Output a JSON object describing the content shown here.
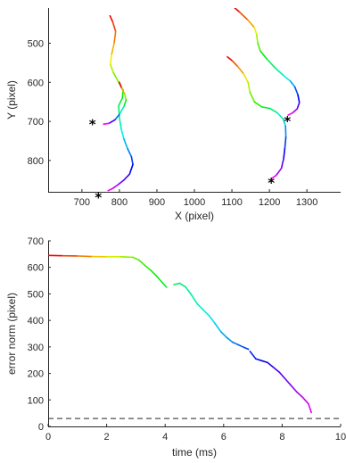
{
  "chart_data": [
    {
      "type": "line",
      "title": "",
      "xlabel": "X (pixel)",
      "ylabel": "Y (pixel)",
      "xlim": [
        610,
        1390
      ],
      "ylim": [
        880,
        410
      ],
      "y_reversed": true,
      "xticks": [
        "700",
        "800",
        "900",
        "1000",
        "1100",
        "1200",
        "1300"
      ],
      "xtick_values": [
        700,
        800,
        900,
        1000,
        1100,
        1200,
        1300
      ],
      "yticks": [
        "500",
        "600",
        "700",
        "800"
      ],
      "ytick_values": [
        500,
        600,
        700,
        800
      ],
      "colormap": "hsv (color encodes time along trajectory)",
      "series": [
        {
          "points": [
            [
              775,
              430
            ],
            [
              782,
              445
            ],
            [
              790,
              470
            ],
            [
              786,
              500
            ],
            [
              779,
              530
            ],
            [
              776,
              555
            ],
            [
              784,
              575
            ],
            [
              798,
              600
            ],
            [
              810,
              620
            ],
            [
              808,
              640
            ],
            [
              798,
              660
            ],
            [
              800,
              690
            ],
            [
              805,
              720
            ],
            [
              812,
              745
            ],
            [
              822,
              770
            ],
            [
              832,
              790
            ],
            [
              836,
              810
            ],
            [
              827,
              835
            ],
            [
              812,
              850
            ],
            [
              796,
              862
            ],
            [
              781,
              872
            ],
            [
              770,
              877
            ]
          ]
        },
        {
          "points": [
            [
              800,
              600
            ],
            [
              806,
              615
            ],
            [
              814,
              630
            ],
            [
              818,
              645
            ],
            [
              812,
              662
            ],
            [
              800,
              682
            ],
            [
              788,
              696
            ],
            [
              772,
              705
            ],
            [
              758,
              707
            ]
          ]
        },
        {
          "points": [
            [
              1102,
              405
            ],
            [
              1120,
              420
            ],
            [
              1142,
              440
            ],
            [
              1160,
              460
            ],
            [
              1166,
              478
            ],
            [
              1169,
              500
            ],
            [
              1176,
              520
            ],
            [
              1193,
              540
            ],
            [
              1214,
              562
            ],
            [
              1237,
              582
            ],
            [
              1256,
              597
            ],
            [
              1268,
              612
            ],
            [
              1276,
              632
            ],
            [
              1280,
              652
            ],
            [
              1274,
              668
            ],
            [
              1262,
              678
            ],
            [
              1250,
              684
            ]
          ]
        },
        {
          "points": [
            [
              1088,
              535
            ],
            [
              1101,
              545
            ],
            [
              1116,
              560
            ],
            [
              1131,
              578
            ],
            [
              1143,
              600
            ],
            [
              1148,
              625
            ],
            [
              1160,
              650
            ],
            [
              1180,
              663
            ],
            [
              1202,
              667
            ],
            [
              1221,
              678
            ],
            [
              1237,
              694
            ],
            [
              1243,
              712
            ],
            [
              1244,
              740
            ],
            [
              1241,
              770
            ],
            [
              1238,
              795
            ],
            [
              1232,
              820
            ],
            [
              1218,
              838
            ],
            [
              1206,
              846
            ]
          ]
        }
      ],
      "markers": [
        {
          "symbol": "*",
          "x": 728,
          "y": 705
        },
        {
          "symbol": "*",
          "x": 744,
          "y": 893
        },
        {
          "symbol": "*",
          "x": 1205,
          "y": 855
        },
        {
          "symbol": "*",
          "x": 1248,
          "y": 698
        }
      ]
    },
    {
      "type": "line",
      "title": "",
      "xlabel": "time (ms)",
      "ylabel": "error norm (pixel)",
      "xlim": [
        0,
        10
      ],
      "ylim": [
        0,
        700
      ],
      "xticks": [
        "0",
        "2",
        "4",
        "6",
        "8",
        "10"
      ],
      "xtick_values": [
        0,
        2,
        4,
        6,
        8,
        10
      ],
      "yticks": [
        "0",
        "100",
        "200",
        "300",
        "400",
        "500",
        "600",
        "700"
      ],
      "ytick_values": [
        0,
        100,
        200,
        300,
        400,
        500,
        600,
        700
      ],
      "colormap": "hsv (color encodes time)",
      "series": [
        {
          "x": [
            0,
            0.5,
            1.0,
            1.5,
            2.0,
            2.5,
            2.9,
            3.1,
            3.3,
            3.5,
            3.7,
            3.9,
            4.05
          ],
          "y": [
            645,
            644,
            643,
            641,
            640,
            640,
            638,
            628,
            608,
            590,
            568,
            543,
            525
          ]
        },
        {
          "x": [
            4.3,
            4.5,
            4.7,
            4.9,
            5.1,
            5.3,
            5.5,
            5.7,
            5.9,
            6.1,
            6.3,
            6.5,
            6.7,
            6.85
          ],
          "y": [
            535,
            540,
            526,
            496,
            462,
            440,
            418,
            389,
            358,
            336,
            318,
            308,
            298,
            291
          ]
        },
        {
          "x": [
            6.9,
            7.1,
            7.3,
            7.5,
            7.7,
            7.9,
            8.1,
            8.3,
            8.5,
            8.7,
            8.9,
            9.0
          ],
          "y": [
            283,
            255,
            248,
            241,
            223,
            205,
            180,
            155,
            130,
            110,
            85,
            52
          ]
        }
      ],
      "reference_line": {
        "y": 30,
        "style": "dashed"
      }
    }
  ]
}
